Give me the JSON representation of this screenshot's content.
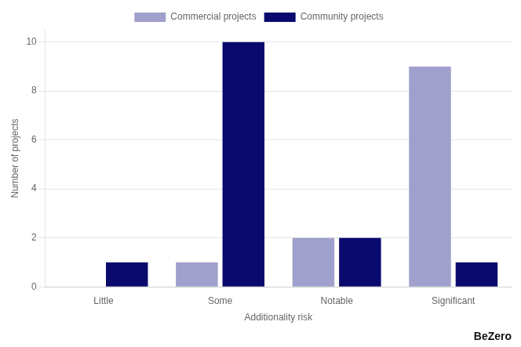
{
  "chart_data": {
    "type": "bar",
    "categories": [
      "Little",
      "Some",
      "Notable",
      "Significant"
    ],
    "series": [
      {
        "name": "Commercial projects",
        "color": "#a0a0cc",
        "values": [
          0,
          1,
          2,
          9
        ]
      },
      {
        "name": "Community projects",
        "color": "#0a0a6e",
        "values": [
          1,
          10,
          2,
          1
        ]
      }
    ],
    "xlabel": "Additionality risk",
    "ylabel": "Number of projects",
    "ylim": [
      0,
      10.5
    ],
    "yticks": [
      0,
      2,
      4,
      6,
      8,
      10
    ],
    "grid": true,
    "legend": "top",
    "annotations": [
      "BeZero"
    ]
  }
}
